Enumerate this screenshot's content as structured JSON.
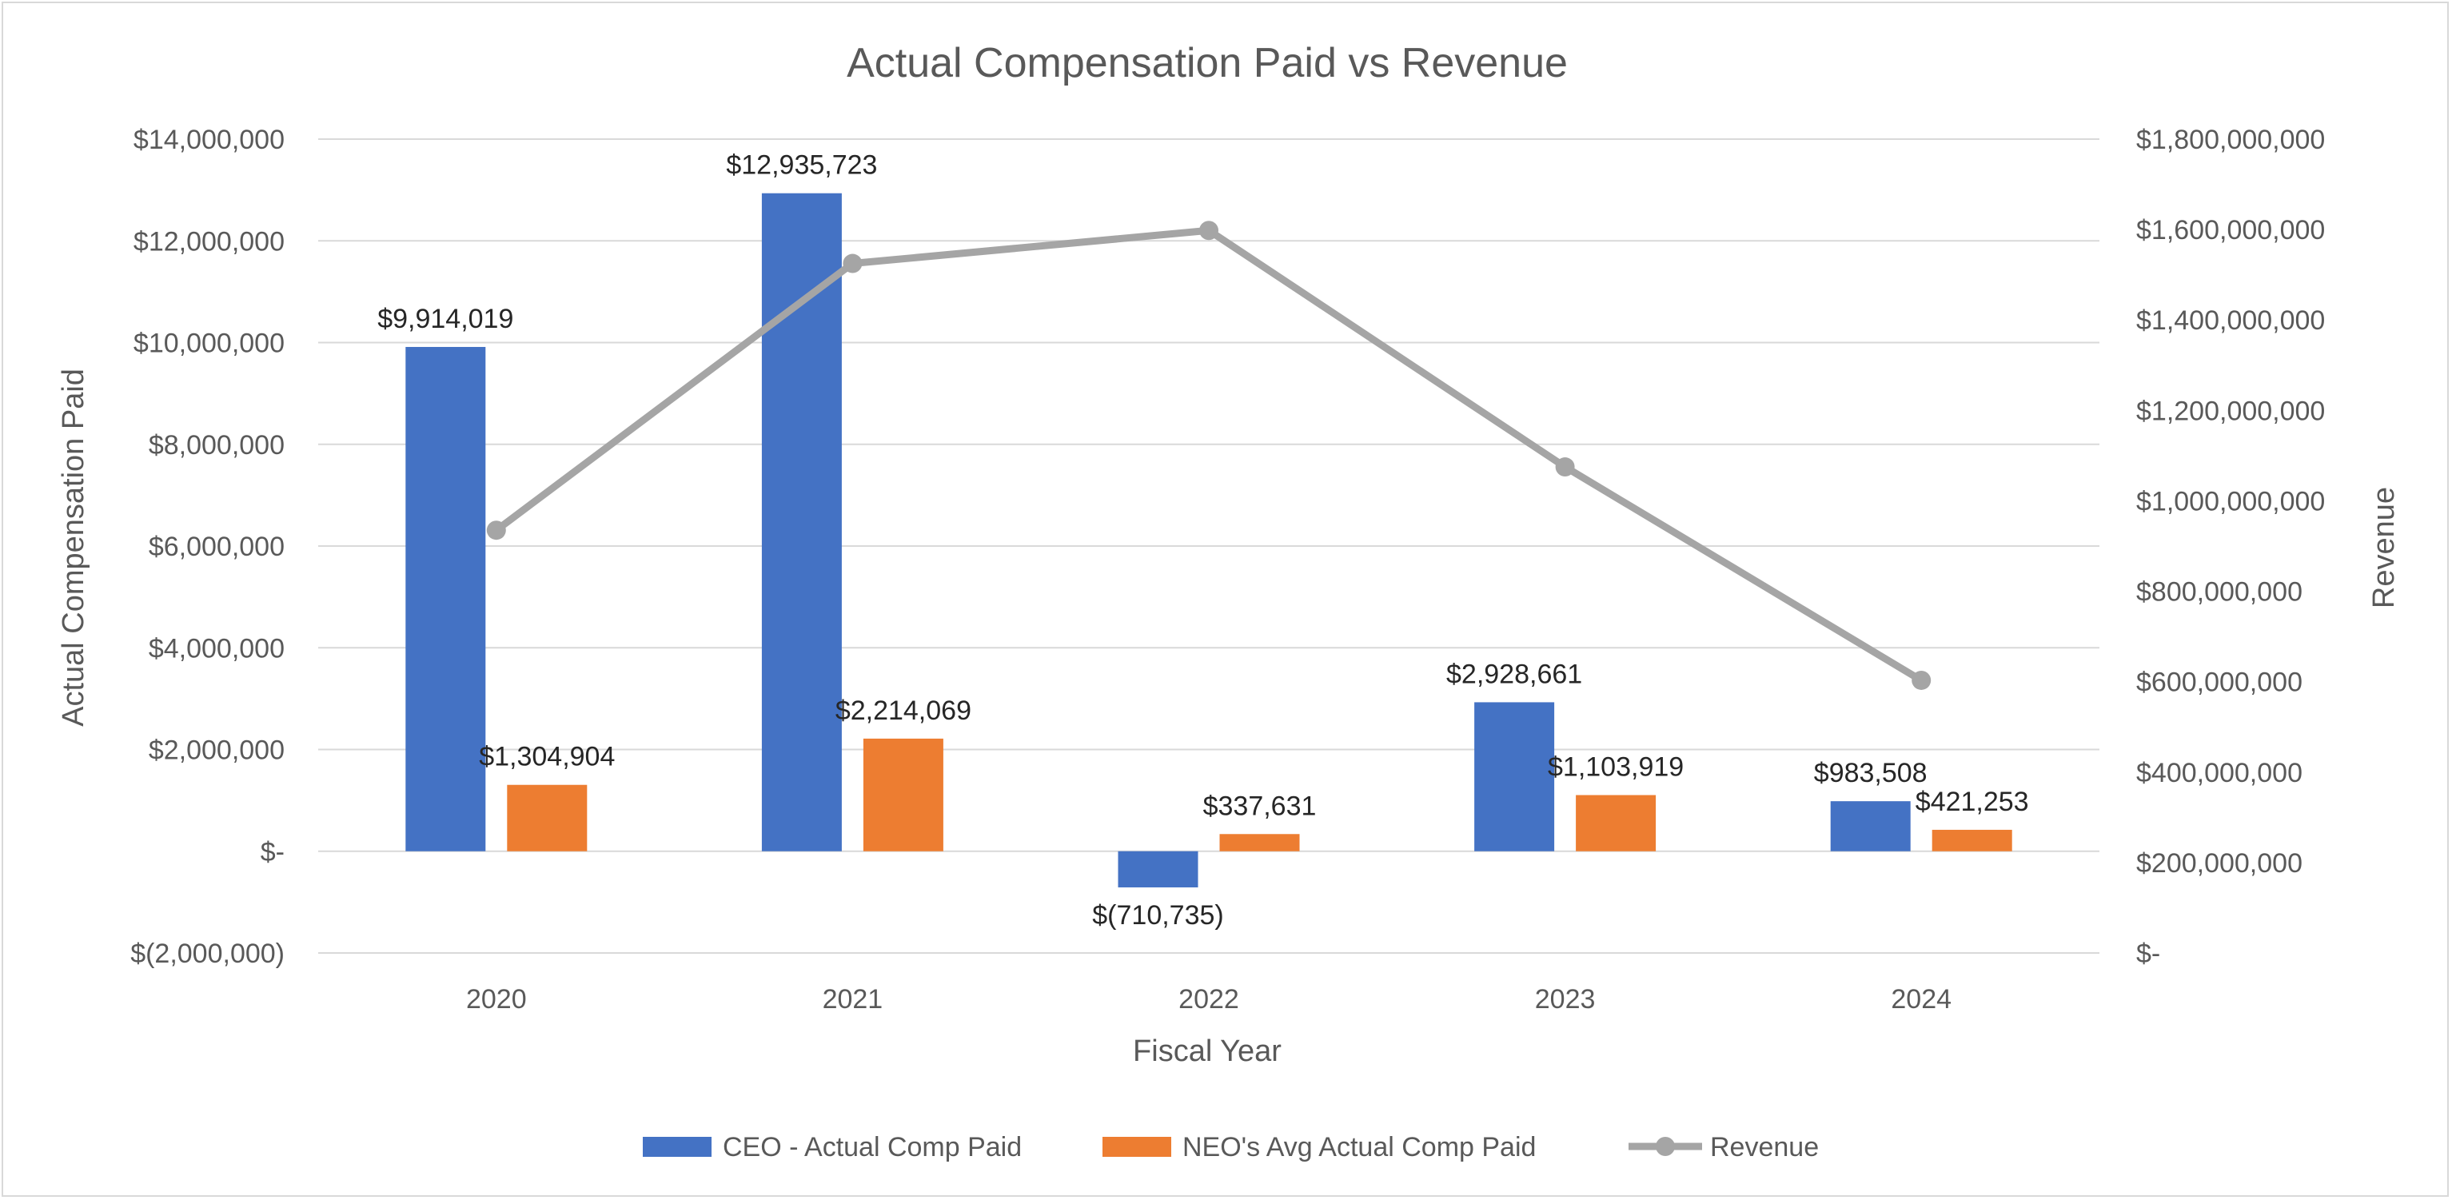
{
  "chart_data": {
    "type": "bar",
    "title": "Actual Compensation Paid vs Revenue",
    "xlabel": "Fiscal Year",
    "ylabel": "Actual Compensation Paid",
    "y2label": "Revenue",
    "categories": [
      "2020",
      "2021",
      "2022",
      "2023",
      "2024"
    ],
    "ylim": [
      -2000000,
      14000000
    ],
    "y_ticks": [
      -2000000,
      0,
      2000000,
      4000000,
      6000000,
      8000000,
      10000000,
      12000000,
      14000000
    ],
    "y_tick_labels": [
      "$(2,000,000)",
      "$-",
      "$2,000,000",
      "$4,000,000",
      "$6,000,000",
      "$8,000,000",
      "$10,000,000",
      "$12,000,000",
      "$14,000,000"
    ],
    "y2lim": [
      0,
      1800000000
    ],
    "y2_ticks": [
      0,
      200000000,
      400000000,
      600000000,
      800000000,
      1000000000,
      1200000000,
      1400000000,
      1600000000,
      1800000000
    ],
    "y2_tick_labels": [
      "$-",
      "$200,000,000",
      "$400,000,000",
      "$600,000,000",
      "$800,000,000",
      "$1,000,000,000",
      "$1,200,000,000",
      "$1,400,000,000",
      "$1,600,000,000",
      "$1,800,000,000"
    ],
    "grid": true,
    "legend_position": "bottom",
    "series": [
      {
        "name": "CEO - Actual Comp Paid",
        "kind": "bar",
        "axis": "left",
        "color": "#4472C4",
        "values": [
          9914019,
          12935723,
          -710735,
          2928661,
          983508
        ],
        "labels": [
          "$9,914,019",
          "$12,935,723",
          "$(710,735)",
          "$2,928,661",
          "$983,508"
        ]
      },
      {
        "name": "NEO's Avg Actual Comp Paid",
        "kind": "bar",
        "axis": "left",
        "color": "#ED7D31",
        "values": [
          1304904,
          2214069,
          337631,
          1103919,
          421253
        ],
        "labels": [
          "$1,304,904",
          "$2,214,069",
          "$337,631",
          "$1,103,919",
          "$421,253"
        ]
      },
      {
        "name": "Revenue",
        "kind": "line",
        "axis": "right",
        "color": "#A5A5A5",
        "values": [
          935000000,
          1525000000,
          1598000000,
          1075000000,
          603000000
        ]
      }
    ]
  }
}
